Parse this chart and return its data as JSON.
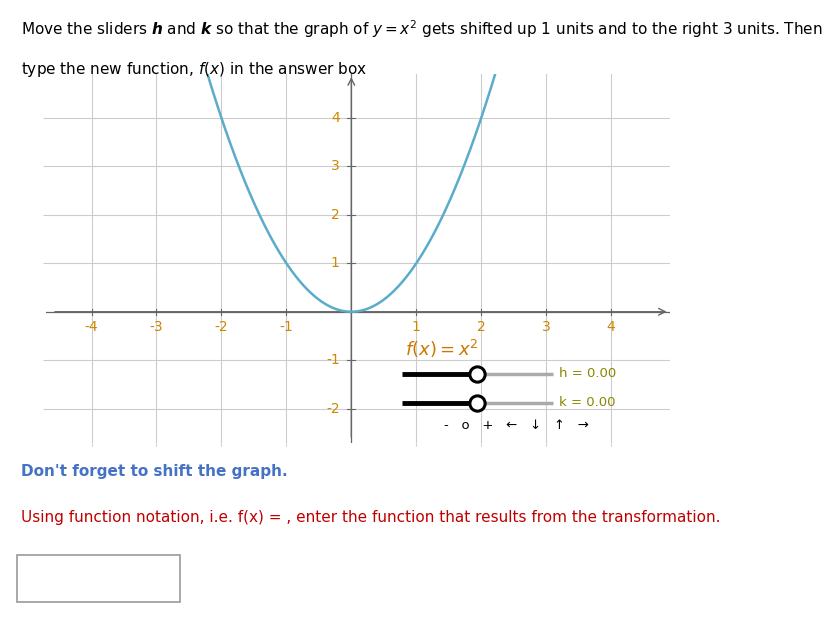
{
  "xlim": [
    -4.7,
    4.9
  ],
  "ylim": [
    -2.7,
    4.9
  ],
  "xticks": [
    -4,
    -3,
    -2,
    -1,
    1,
    2,
    3,
    4
  ],
  "yticks": [
    -2,
    -1,
    1,
    2,
    3,
    4
  ],
  "curve_color": "#5aacca",
  "curve_lw": 1.8,
  "grid_color": "#cccccc",
  "axis_color": "#666666",
  "tick_color": "#cc8800",
  "fx_color": "#cc7700",
  "slider_label_color": "#888800",
  "text_color_blue": "#4472c4",
  "text_color_red": "#c00000",
  "title_color_black": "#000000",
  "title_italic_color": "#000000",
  "slider_h_label": "h = 0.00",
  "slider_k_label": "k = 0.00",
  "bottom_note1": "Don't forget to shift the graph.",
  "background_color": "#ffffff",
  "fig_width": 8.37,
  "fig_height": 6.19,
  "dpi": 100
}
